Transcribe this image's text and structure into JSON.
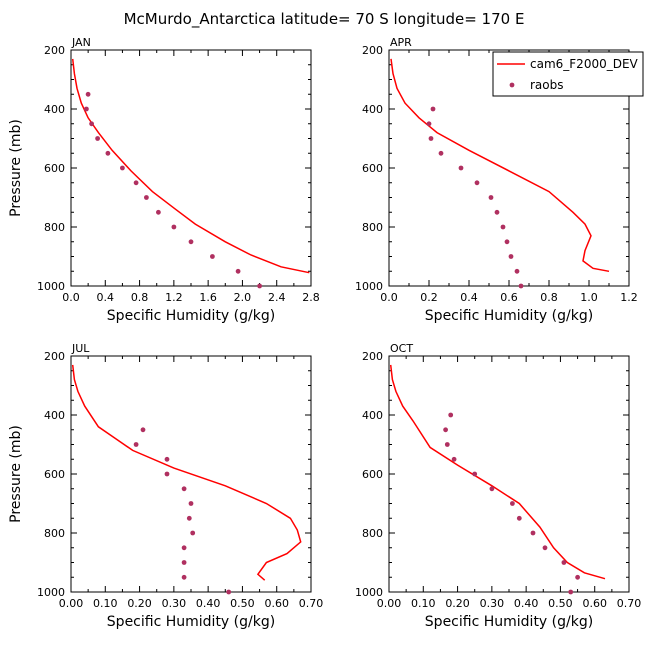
{
  "page_title": "McMurdo_Antarctica  latitude= 70 S longitude= 170 E",
  "colors": {
    "model": "#ff0000",
    "obs": "#b03060",
    "axis": "#000000"
  },
  "legend": {
    "model_label": "cam6_F2000_DEV",
    "obs_label": "raobs"
  },
  "chart_data": [
    {
      "type": "line",
      "title": "JAN",
      "xlabel": "Specific Humidity (g/kg)",
      "ylabel": "Pressure (mb)",
      "xlim": [
        0,
        2.8
      ],
      "ylim": [
        1000,
        200
      ],
      "y_inverted": true,
      "xticks": [
        "0.0",
        "0.4",
        "0.8",
        "1.2",
        "1.6",
        "2.0",
        "2.4",
        "2.8"
      ],
      "yticks": [
        "200",
        "400",
        "600",
        "800",
        "1000"
      ],
      "series": [
        {
          "name": "cam6_F2000_DEV",
          "style": "line",
          "points": [
            [
              0.02,
              230
            ],
            [
              0.04,
              280
            ],
            [
              0.07,
              330
            ],
            [
              0.12,
              380
            ],
            [
              0.2,
              430
            ],
            [
              0.32,
              480
            ],
            [
              0.48,
              540
            ],
            [
              0.7,
              610
            ],
            [
              0.95,
              680
            ],
            [
              1.22,
              740
            ],
            [
              1.45,
              790
            ],
            [
              1.8,
              850
            ],
            [
              2.1,
              895
            ],
            [
              2.45,
              935
            ],
            [
              2.78,
              955
            ]
          ]
        },
        {
          "name": "raobs",
          "style": "markers",
          "points": [
            [
              0.2,
              350
            ],
            [
              0.18,
              400
            ],
            [
              0.24,
              450
            ],
            [
              0.31,
              500
            ],
            [
              0.43,
              550
            ],
            [
              0.6,
              600
            ],
            [
              0.76,
              650
            ],
            [
              0.88,
              700
            ],
            [
              1.02,
              750
            ],
            [
              1.2,
              800
            ],
            [
              1.4,
              850
            ],
            [
              1.65,
              900
            ],
            [
              1.95,
              950
            ],
            [
              2.2,
              1000
            ]
          ]
        }
      ]
    },
    {
      "type": "line",
      "title": "APR",
      "xlabel": "Specific Humidity (g/kg)",
      "ylabel": "",
      "xlim": [
        0,
        1.2
      ],
      "ylim": [
        1000,
        200
      ],
      "y_inverted": true,
      "xticks": [
        "0.0",
        "0.2",
        "0.4",
        "0.6",
        "0.8",
        "1.0",
        "1.2"
      ],
      "yticks": [
        "200",
        "400",
        "600",
        "800",
        "1000"
      ],
      "series": [
        {
          "name": "cam6_F2000_DEV",
          "style": "line",
          "points": [
            [
              0.01,
              230
            ],
            [
              0.02,
              280
            ],
            [
              0.04,
              330
            ],
            [
              0.08,
              380
            ],
            [
              0.15,
              430
            ],
            [
              0.24,
              480
            ],
            [
              0.4,
              540
            ],
            [
              0.6,
              610
            ],
            [
              0.8,
              680
            ],
            [
              0.92,
              750
            ],
            [
              0.98,
              790
            ],
            [
              1.01,
              830
            ],
            [
              0.98,
              880
            ],
            [
              0.97,
              915
            ],
            [
              1.02,
              940
            ],
            [
              1.1,
              950
            ]
          ]
        },
        {
          "name": "raobs",
          "style": "markers",
          "points": [
            [
              0.22,
              400
            ],
            [
              0.2,
              450
            ],
            [
              0.21,
              500
            ],
            [
              0.26,
              550
            ],
            [
              0.36,
              600
            ],
            [
              0.44,
              650
            ],
            [
              0.51,
              700
            ],
            [
              0.54,
              750
            ],
            [
              0.57,
              800
            ],
            [
              0.59,
              850
            ],
            [
              0.61,
              900
            ],
            [
              0.64,
              950
            ],
            [
              0.66,
              1000
            ]
          ]
        }
      ]
    },
    {
      "type": "line",
      "title": "JUL",
      "xlabel": "Specific Humidity (g/kg)",
      "ylabel": "Pressure (mb)",
      "xlim": [
        0,
        0.7
      ],
      "ylim": [
        1000,
        200
      ],
      "y_inverted": true,
      "xticks": [
        "0.00",
        "0.10",
        "0.20",
        "0.30",
        "0.40",
        "0.50",
        "0.60",
        "0.70"
      ],
      "yticks": [
        "200",
        "400",
        "600",
        "800",
        "1000"
      ],
      "series": [
        {
          "name": "cam6_F2000_DEV",
          "style": "line",
          "points": [
            [
              0.005,
              230
            ],
            [
              0.01,
              280
            ],
            [
              0.02,
              320
            ],
            [
              0.04,
              370
            ],
            [
              0.08,
              440
            ],
            [
              0.13,
              480
            ],
            [
              0.18,
              520
            ],
            [
              0.3,
              580
            ],
            [
              0.45,
              640
            ],
            [
              0.57,
              700
            ],
            [
              0.64,
              750
            ],
            [
              0.66,
              790
            ],
            [
              0.67,
              830
            ],
            [
              0.63,
              870
            ],
            [
              0.57,
              900
            ],
            [
              0.545,
              940
            ],
            [
              0.565,
              960
            ]
          ]
        },
        {
          "name": "raobs",
          "style": "markers",
          "points": [
            [
              0.21,
              450
            ],
            [
              0.19,
              500
            ],
            [
              0.28,
              550
            ],
            [
              0.28,
              600
            ],
            [
              0.33,
              650
            ],
            [
              0.35,
              700
            ],
            [
              0.345,
              750
            ],
            [
              0.355,
              800
            ],
            [
              0.33,
              850
            ],
            [
              0.33,
              900
            ],
            [
              0.33,
              950
            ],
            [
              0.46,
              1000
            ]
          ]
        }
      ]
    },
    {
      "type": "line",
      "title": "OCT",
      "xlabel": "Specific Humidity (g/kg)",
      "ylabel": "",
      "xlim": [
        0,
        0.7
      ],
      "ylim": [
        1000,
        200
      ],
      "y_inverted": true,
      "xticks": [
        "0.00",
        "0.10",
        "0.20",
        "0.30",
        "0.40",
        "0.50",
        "0.60",
        "0.70"
      ],
      "yticks": [
        "200",
        "400",
        "600",
        "800",
        "1000"
      ],
      "series": [
        {
          "name": "cam6_F2000_DEV",
          "style": "line",
          "points": [
            [
              0.005,
              230
            ],
            [
              0.01,
              280
            ],
            [
              0.02,
              320
            ],
            [
              0.04,
              370
            ],
            [
              0.07,
              420
            ],
            [
              0.12,
              510
            ],
            [
              0.2,
              570
            ],
            [
              0.3,
              640
            ],
            [
              0.38,
              700
            ],
            [
              0.44,
              780
            ],
            [
              0.48,
              850
            ],
            [
              0.52,
              900
            ],
            [
              0.57,
              935
            ],
            [
              0.63,
              955
            ]
          ]
        },
        {
          "name": "raobs",
          "style": "markers",
          "points": [
            [
              0.18,
              400
            ],
            [
              0.165,
              450
            ],
            [
              0.17,
              500
            ],
            [
              0.19,
              550
            ],
            [
              0.25,
              600
            ],
            [
              0.3,
              650
            ],
            [
              0.36,
              700
            ],
            [
              0.38,
              750
            ],
            [
              0.42,
              800
            ],
            [
              0.455,
              850
            ],
            [
              0.51,
              900
            ],
            [
              0.55,
              950
            ],
            [
              0.53,
              1000
            ]
          ]
        }
      ]
    }
  ]
}
